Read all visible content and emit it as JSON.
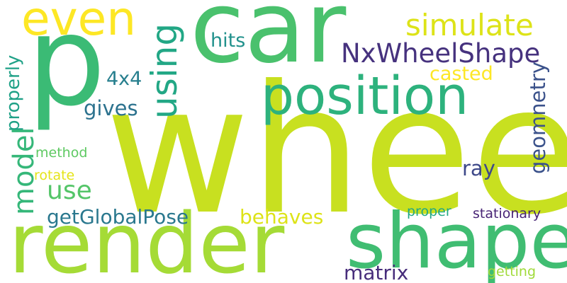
{
  "word_cloud": {
    "words": [
      {
        "text": "wheel",
        "color": "#c8e020"
      },
      {
        "text": "car",
        "color": "#4ac16d"
      },
      {
        "text": "p",
        "color": "#3bbb75"
      },
      {
        "text": "render",
        "color": "#a5db36"
      },
      {
        "text": "shape",
        "color": "#40bd72"
      },
      {
        "text": "position",
        "color": "#2db27d"
      },
      {
        "text": "even",
        "color": "#fde725"
      },
      {
        "text": "NxWheelShape",
        "color": "#46327e"
      },
      {
        "text": "simulate",
        "color": "#dde318"
      },
      {
        "text": "using",
        "color": "#22a785"
      },
      {
        "text": "casted",
        "color": "#fde725"
      },
      {
        "text": "4x4",
        "color": "#277f8e"
      },
      {
        "text": "hits",
        "color": "#21918c"
      },
      {
        "text": "gives",
        "color": "#2c728e"
      },
      {
        "text": "geomnetry",
        "color": "#3b528b"
      },
      {
        "text": "properly",
        "color": "#1fa187"
      },
      {
        "text": "model",
        "color": "#35b779"
      },
      {
        "text": "method",
        "color": "#5ec962"
      },
      {
        "text": "use",
        "color": "#54c568"
      },
      {
        "text": "rotate",
        "color": "#e5e419"
      },
      {
        "text": "ray",
        "color": "#3e4989"
      },
      {
        "text": "getGlobalPose",
        "color": "#2a788e"
      },
      {
        "text": "behaves",
        "color": "#dde318"
      },
      {
        "text": "proper",
        "color": "#22a884"
      },
      {
        "text": "stationary",
        "color": "#482475"
      },
      {
        "text": "matrix",
        "color": "#472d7b"
      },
      {
        "text": "getting",
        "color": "#a0da39"
      }
    ]
  }
}
